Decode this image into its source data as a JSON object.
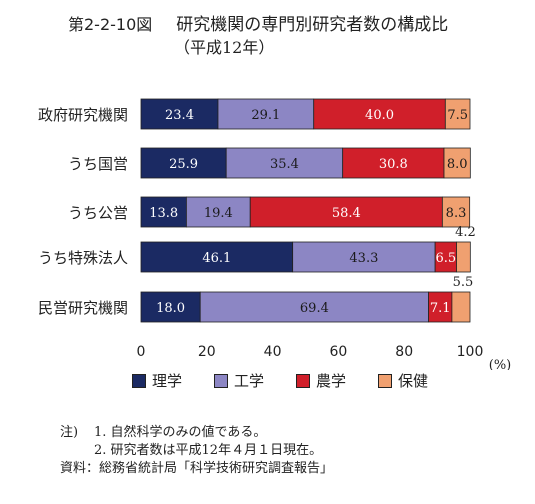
{
  "header": {
    "figure_number": "第2-2-10図",
    "title": "研究機関の専門別研究者数の構成比",
    "subtitle": "（平成12年）"
  },
  "colors": {
    "理学": "#1b2a63",
    "工学": "#8c86c4",
    "農学": "#d01f2a",
    "保健": "#f0a070",
    "text": "#222222"
  },
  "chart_data": {
    "type": "bar",
    "orientation": "horizontal",
    "stacked": true,
    "categories": [
      "政府研究機関",
      "うち国営",
      "うち公営",
      "うち特殊法人",
      "民営研究機関"
    ],
    "series": [
      {
        "name": "理学",
        "values": [
          23.4,
          25.9,
          13.8,
          46.1,
          18.0
        ],
        "labels": [
          "23.4",
          "25.9",
          "13.8",
          "46.1",
          "18.0"
        ]
      },
      {
        "name": "工学",
        "values": [
          29.1,
          35.4,
          19.4,
          43.3,
          69.4
        ],
        "labels": [
          "29.1",
          "35.4",
          "19.4",
          "43.3",
          "69.4"
        ]
      },
      {
        "name": "農学",
        "values": [
          40.0,
          30.8,
          58.4,
          6.5,
          7.1
        ],
        "labels": [
          "40.0",
          "30.8",
          "58.4",
          "6.5",
          "7.1"
        ]
      },
      {
        "name": "保健",
        "values": [
          7.5,
          8.0,
          8.3,
          4.2,
          5.5
        ],
        "labels": [
          "7.5",
          "8.0",
          "8.3",
          "4.2",
          "5.5"
        ]
      }
    ],
    "x_ticks": [
      "0",
      "20",
      "40",
      "60",
      "80",
      "100"
    ],
    "xlim": [
      0,
      100
    ],
    "x_unit": "(%)",
    "grid": false,
    "legend_position": "bottom"
  },
  "notes": {
    "note_head": "注)",
    "note1": "1. 自然科学のみの値である。",
    "note2": "2. 研究者数は平成12年４月１日現在。",
    "source_head": "資料：",
    "source": "総務省統計局「科学技術研究調査報告」"
  }
}
